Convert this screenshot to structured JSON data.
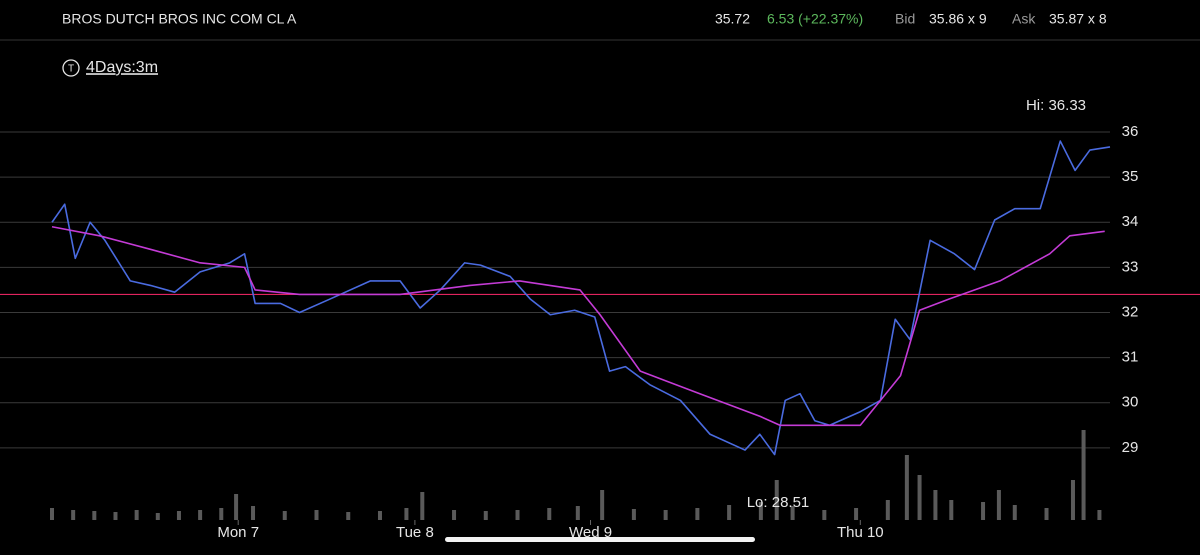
{
  "header": {
    "title": "BROS DUTCH BROS INC COM CL A",
    "last": "35.72",
    "change": "6.53 (+22.37%)",
    "bid_label": "Bid",
    "bid": "35.86 x 9",
    "ask_label": "Ask",
    "ask": "35.87 x 8",
    "period": "4Days:3m"
  },
  "chart_data": {
    "type": "line",
    "annotations": {
      "high": "Hi: 36.33",
      "low": "Lo: 28.51"
    },
    "xlim": [
      0,
      100
    ],
    "ylim": [
      27.4,
      38.04
    ],
    "xticks": [
      {
        "value": 17.6,
        "label": "Mon 7"
      },
      {
        "value": 34.3,
        "label": "Tue 8"
      },
      {
        "value": 50.9,
        "label": "Wed 9"
      },
      {
        "value": 76.4,
        "label": "Thu 10"
      }
    ],
    "yticks": [
      29,
      30,
      31,
      32,
      33,
      34,
      35,
      36
    ],
    "grid": true,
    "reference_line": {
      "value": 32.4,
      "color": "#e0245e"
    },
    "series": [
      {
        "color": "#4a6be0",
        "x": [
          0,
          1.2,
          2.2,
          3.6,
          5.0,
          7.4,
          9.3,
          11.6,
          14.0,
          16.8,
          18.2,
          19.2,
          21.6,
          23.4,
          26.3,
          30.1,
          32.9,
          34.8,
          36.7,
          39.0,
          40.5,
          43.3,
          45.2,
          47.1,
          49.4,
          51.3,
          52.7,
          54.2,
          56.5,
          59.4,
          62.2,
          65.5,
          66.9,
          68.3,
          69.3,
          70.7,
          72.1,
          73.5,
          76.4,
          78.3,
          79.7,
          81.1,
          83.0,
          85.3,
          87.2,
          89.1,
          91.0,
          93.4,
          95.3,
          96.7,
          98.1,
          100
        ],
        "values": [
          34.0,
          34.4,
          33.2,
          34.0,
          33.6,
          32.7,
          32.6,
          32.45,
          32.9,
          33.1,
          33.3,
          32.2,
          32.2,
          32.0,
          32.3,
          32.7,
          32.7,
          32.1,
          32.5,
          33.1,
          33.05,
          32.8,
          32.3,
          31.95,
          32.05,
          31.9,
          30.7,
          30.8,
          30.4,
          30.05,
          29.3,
          28.95,
          29.3,
          28.85,
          30.05,
          30.2,
          29.6,
          29.5,
          29.8,
          30.05,
          31.85,
          31.4,
          33.6,
          33.3,
          32.95,
          34.05,
          34.3,
          34.3,
          35.8,
          35.15,
          35.6,
          35.67
        ]
      },
      {
        "color": "#c43bd6",
        "x": [
          0,
          4.5,
          9.3,
          14.0,
          18.2,
          19.2,
          23.4,
          32.9,
          39.5,
          44.2,
          49.9,
          51.8,
          55.6,
          61.2,
          66.9,
          68.8,
          76.4,
          80.2,
          82.0,
          84.8,
          89.6,
          94.3,
          96.2,
          99.5
        ],
        "values": [
          33.9,
          33.7,
          33.4,
          33.1,
          33.0,
          32.5,
          32.4,
          32.4,
          32.6,
          32.7,
          32.5,
          31.95,
          30.7,
          30.2,
          29.7,
          29.5,
          29.5,
          30.6,
          32.05,
          32.3,
          32.7,
          33.3,
          33.7,
          33.8
        ]
      }
    ],
    "volume": {
      "color": "#5a5a5a",
      "y2lim": [
        0,
        100
      ],
      "x": [
        0,
        2,
        4,
        6,
        8,
        10,
        12,
        14,
        16,
        17.4,
        19,
        22,
        25,
        28,
        31,
        33.5,
        35,
        38,
        41,
        44,
        47,
        49.7,
        52,
        55,
        58,
        61,
        64,
        67,
        68.5,
        70,
        73,
        76,
        79,
        80.8,
        82,
        83.5,
        85,
        88,
        89.5,
        91,
        94,
        96.5,
        97.5,
        99
      ],
      "values": [
        12,
        10,
        9,
        8,
        10,
        7,
        9,
        10,
        12,
        26,
        14,
        9,
        10,
        8,
        9,
        12,
        28,
        10,
        9,
        10,
        12,
        14,
        30,
        11,
        10,
        12,
        15,
        18,
        40,
        14,
        10,
        12,
        20,
        65,
        45,
        30,
        20,
        18,
        30,
        15,
        12,
        40,
        90,
        10
      ]
    }
  }
}
